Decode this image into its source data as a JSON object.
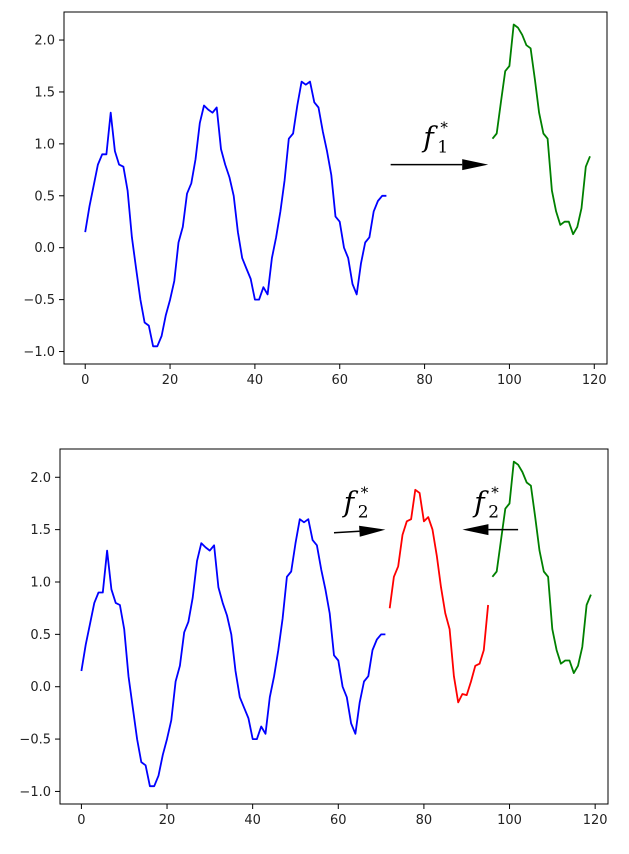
{
  "chart_data": [
    {
      "type": "line",
      "xlim": [
        -5,
        123
      ],
      "ylim": [
        -1.12,
        2.27
      ],
      "xticks": [
        0,
        20,
        40,
        60,
        80,
        100,
        120
      ],
      "yticks": [
        -1.0,
        -0.5,
        0.0,
        0.5,
        1.0,
        1.5,
        2.0
      ],
      "tick_labels_x": [
        "0",
        "20",
        "40",
        "60",
        "80",
        "100",
        "120"
      ],
      "tick_labels_y": [
        "−1.0",
        "−0.5",
        "0.0",
        "0.5",
        "1.0",
        "1.5",
        "2.0"
      ],
      "grid": false,
      "series": [
        {
          "color": "#0000ff",
          "x": [
            0,
            1,
            2,
            3,
            4,
            5,
            6,
            7,
            8,
            9,
            10,
            11,
            12,
            13,
            14,
            15,
            16,
            17,
            18,
            19,
            20,
            21,
            22,
            23,
            24,
            25,
            26,
            27,
            28,
            29,
            30,
            31,
            32,
            33,
            34,
            35,
            36,
            37,
            38,
            39,
            40,
            41,
            42,
            43,
            44,
            45,
            46,
            47,
            48,
            49,
            50,
            51,
            52,
            53,
            54,
            55,
            56,
            57,
            58,
            59,
            60,
            61,
            62,
            63,
            64,
            65,
            66,
            67,
            68,
            69,
            70,
            71
          ],
          "y": [
            0.15,
            0.4,
            0.6,
            0.8,
            0.9,
            0.9,
            1.3,
            0.93,
            0.8,
            0.78,
            0.55,
            0.1,
            -0.2,
            -0.5,
            -0.72,
            -0.75,
            -0.95,
            -0.95,
            -0.85,
            -0.65,
            -0.5,
            -0.32,
            0.05,
            0.2,
            0.52,
            0.62,
            0.85,
            1.2,
            1.37,
            1.33,
            1.3,
            1.35,
            0.95,
            0.8,
            0.68,
            0.5,
            0.15,
            -0.1,
            -0.2,
            -0.3,
            -0.5,
            -0.5,
            -0.38,
            -0.45,
            -0.1,
            0.1,
            0.35,
            0.65,
            1.05,
            1.1,
            1.37,
            1.6,
            1.57,
            1.6,
            1.4,
            1.35,
            1.12,
            0.93,
            0.7,
            0.3,
            0.25,
            0.0,
            -0.1,
            -0.35,
            -0.45,
            -0.15,
            0.05,
            0.1,
            0.35,
            0.45,
            0.5,
            0.5
          ]
        },
        {
          "color": "#008000",
          "x": [
            96,
            97,
            98,
            99,
            100,
            101,
            102,
            103,
            104,
            105,
            106,
            107,
            108,
            109,
            110,
            111,
            112,
            113,
            114,
            115,
            116,
            117,
            118,
            119
          ],
          "y": [
            1.05,
            1.1,
            1.4,
            1.7,
            1.75,
            2.15,
            2.12,
            2.05,
            1.95,
            1.92,
            1.62,
            1.3,
            1.1,
            1.05,
            0.55,
            0.35,
            0.22,
            0.25,
            0.25,
            0.13,
            0.2,
            0.38,
            0.78,
            0.88
          ]
        }
      ],
      "annotations": [
        {
          "label": "f",
          "sub": "1",
          "sup": "*",
          "arrow_from": [
            72,
            0.8
          ],
          "arrow_to": [
            95,
            0.8
          ]
        }
      ]
    },
    {
      "type": "line",
      "xlim": [
        -5,
        123
      ],
      "ylim": [
        -1.12,
        2.27
      ],
      "xticks": [
        0,
        20,
        40,
        60,
        80,
        100,
        120
      ],
      "yticks": [
        -1.0,
        -0.5,
        0.0,
        0.5,
        1.0,
        1.5,
        2.0
      ],
      "tick_labels_x": [
        "0",
        "20",
        "40",
        "60",
        "80",
        "100",
        "120"
      ],
      "tick_labels_y": [
        "−1.0",
        "−0.5",
        "0.0",
        "0.5",
        "1.0",
        "1.5",
        "2.0"
      ],
      "grid": false,
      "series": [
        {
          "color": "#0000ff",
          "x": [
            0,
            1,
            2,
            3,
            4,
            5,
            6,
            7,
            8,
            9,
            10,
            11,
            12,
            13,
            14,
            15,
            16,
            17,
            18,
            19,
            20,
            21,
            22,
            23,
            24,
            25,
            26,
            27,
            28,
            29,
            30,
            31,
            32,
            33,
            34,
            35,
            36,
            37,
            38,
            39,
            40,
            41,
            42,
            43,
            44,
            45,
            46,
            47,
            48,
            49,
            50,
            51,
            52,
            53,
            54,
            55,
            56,
            57,
            58,
            59,
            60,
            61,
            62,
            63,
            64,
            65,
            66,
            67,
            68,
            69,
            70,
            71
          ],
          "y": [
            0.15,
            0.4,
            0.6,
            0.8,
            0.9,
            0.9,
            1.3,
            0.93,
            0.8,
            0.78,
            0.55,
            0.1,
            -0.2,
            -0.5,
            -0.72,
            -0.75,
            -0.95,
            -0.95,
            -0.85,
            -0.65,
            -0.5,
            -0.32,
            0.05,
            0.2,
            0.52,
            0.62,
            0.85,
            1.2,
            1.37,
            1.33,
            1.3,
            1.35,
            0.95,
            0.8,
            0.68,
            0.5,
            0.15,
            -0.1,
            -0.2,
            -0.3,
            -0.5,
            -0.5,
            -0.38,
            -0.45,
            -0.1,
            0.1,
            0.35,
            0.65,
            1.05,
            1.1,
            1.37,
            1.6,
            1.57,
            1.6,
            1.4,
            1.35,
            1.12,
            0.93,
            0.7,
            0.3,
            0.25,
            0.0,
            -0.1,
            -0.35,
            -0.45,
            -0.15,
            0.05,
            0.1,
            0.35,
            0.45,
            0.5,
            0.5
          ]
        },
        {
          "color": "#ff0000",
          "x": [
            72,
            73,
            74,
            75,
            76,
            77,
            78,
            79,
            80,
            81,
            82,
            83,
            84,
            85,
            86,
            87,
            88,
            89,
            90,
            91,
            92,
            93,
            94,
            95
          ],
          "y": [
            0.75,
            1.05,
            1.15,
            1.45,
            1.58,
            1.6,
            1.88,
            1.85,
            1.58,
            1.62,
            1.5,
            1.25,
            0.95,
            0.7,
            0.55,
            0.1,
            -0.15,
            -0.07,
            -0.08,
            0.05,
            0.2,
            0.22,
            0.35,
            0.78
          ]
        },
        {
          "color": "#008000",
          "x": [
            96,
            97,
            98,
            99,
            100,
            101,
            102,
            103,
            104,
            105,
            106,
            107,
            108,
            109,
            110,
            111,
            112,
            113,
            114,
            115,
            116,
            117,
            118,
            119
          ],
          "y": [
            1.05,
            1.1,
            1.4,
            1.7,
            1.75,
            2.15,
            2.12,
            2.05,
            1.95,
            1.92,
            1.62,
            1.3,
            1.1,
            1.05,
            0.55,
            0.35,
            0.22,
            0.25,
            0.25,
            0.13,
            0.2,
            0.38,
            0.78,
            0.88
          ]
        }
      ],
      "annotations": [
        {
          "label": "f",
          "sub": "2",
          "sup": "*",
          "arrow_from": [
            59,
            1.47
          ],
          "arrow_to": [
            71,
            1.5
          ]
        },
        {
          "label": "f",
          "sub": "2",
          "sup": "*",
          "arrow_from": [
            102,
            1.5
          ],
          "arrow_to": [
            89,
            1.5
          ]
        }
      ]
    }
  ]
}
